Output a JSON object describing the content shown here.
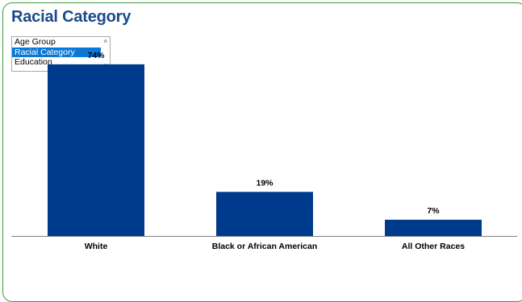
{
  "title": "Racial Category",
  "selector": {
    "options": [
      "Age Group",
      "Racial Category",
      "Education"
    ],
    "selected": "Racial Category"
  },
  "colors": {
    "bar": "#003a8c",
    "title": "#1a4a8a",
    "frame": "#3b9b3b",
    "selected": "#0a78d7"
  },
  "icons": {
    "scroll_up": "chevron-up-icon",
    "scroll_down": "chevron-down-icon"
  },
  "chart_data": {
    "type": "bar",
    "categories": [
      "White",
      "Black or African American",
      "All Other Races"
    ],
    "values": [
      74,
      19,
      7
    ],
    "value_labels": [
      "74%",
      "19%",
      "7%"
    ],
    "unit": "%",
    "ylim": [
      0,
      100
    ],
    "grid": false
  }
}
